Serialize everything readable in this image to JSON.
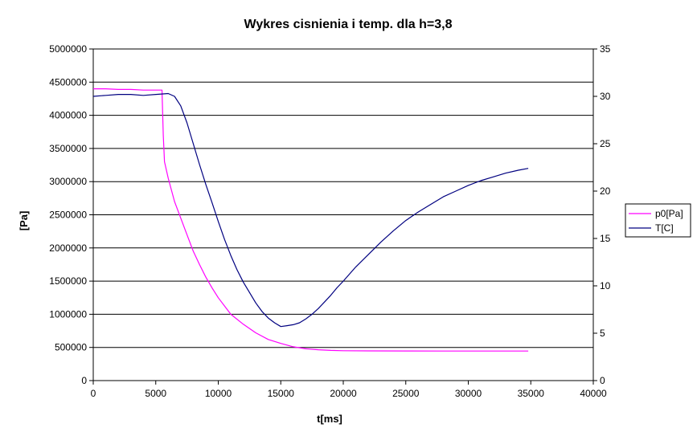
{
  "chart_data": {
    "type": "line",
    "title": "Wykres cisnienia i temp. dla h=3,8",
    "xlabel": "t[ms]",
    "ylabel": "[Pa]",
    "y2label": "",
    "xlim": [
      0,
      40000
    ],
    "ylim": [
      0,
      5000000
    ],
    "y2lim": [
      0,
      35
    ],
    "xticks": [
      0,
      5000,
      10000,
      15000,
      20000,
      25000,
      30000,
      35000,
      40000
    ],
    "yticks": [
      0,
      500000,
      1000000,
      1500000,
      2000000,
      2500000,
      3000000,
      3500000,
      4000000,
      4500000,
      5000000
    ],
    "y2ticks": [
      0,
      5,
      10,
      15,
      20,
      25,
      30,
      35
    ],
    "xtick_labels": [
      "0",
      "5000",
      "10000",
      "15000",
      "20000",
      "25000",
      "30000",
      "35000",
      "40000"
    ],
    "ytick_labels": [
      "0",
      "500000",
      "1000000",
      "1500000",
      "2000000",
      "2500000",
      "3000000",
      "3500000",
      "4000000",
      "4500000",
      "5000000"
    ],
    "y2tick_labels": [
      "0",
      "5",
      "10",
      "15",
      "20",
      "25",
      "30",
      "35"
    ],
    "grid": "horizontal",
    "legend_position": "right",
    "series": [
      {
        "name": "p0[Pa]",
        "axis": "left",
        "color": "#ff00ff",
        "x": [
          0,
          1000,
          2000,
          3000,
          4000,
          5000,
          5500,
          5600,
          5700,
          6000,
          6500,
          7000,
          7500,
          8000,
          8500,
          9000,
          9500,
          10000,
          11000,
          12000,
          13000,
          14000,
          15000,
          16000,
          17000,
          18000,
          19000,
          20000,
          22000,
          25000,
          28000,
          30000,
          32000,
          34800
        ],
        "y": [
          4400000,
          4400000,
          4390000,
          4390000,
          4380000,
          4380000,
          4380000,
          3700000,
          3300000,
          3050000,
          2700000,
          2450000,
          2200000,
          1950000,
          1750000,
          1560000,
          1400000,
          1250000,
          1000000,
          850000,
          720000,
          620000,
          560000,
          510000,
          480000,
          465000,
          455000,
          450000,
          448000,
          447000,
          446000,
          445000,
          445000,
          445000
        ]
      },
      {
        "name": "T[C]",
        "axis": "right",
        "color": "#000080",
        "x": [
          0,
          1000,
          2000,
          3000,
          4000,
          5000,
          6000,
          6500,
          7000,
          7500,
          8000,
          8500,
          9000,
          9500,
          10000,
          10500,
          11000,
          11500,
          12000,
          12500,
          13000,
          13500,
          14000,
          14500,
          15000,
          15500,
          16000,
          16500,
          17000,
          17500,
          18000,
          18500,
          19000,
          19500,
          20000,
          21000,
          22000,
          23000,
          24000,
          25000,
          26000,
          27000,
          28000,
          29000,
          30000,
          31000,
          32000,
          33000,
          34000,
          34800
        ],
        "y": [
          30.0,
          30.1,
          30.2,
          30.2,
          30.1,
          30.2,
          30.3,
          30.0,
          29.0,
          27.2,
          25.0,
          22.8,
          20.7,
          18.8,
          16.8,
          14.9,
          13.2,
          11.7,
          10.4,
          9.3,
          8.2,
          7.3,
          6.6,
          6.1,
          5.7,
          5.8,
          5.9,
          6.1,
          6.5,
          7.0,
          7.6,
          8.3,
          9.0,
          9.8,
          10.5,
          12.0,
          13.3,
          14.6,
          15.8,
          16.9,
          17.8,
          18.6,
          19.4,
          20.0,
          20.6,
          21.1,
          21.5,
          21.9,
          22.2,
          22.4
        ]
      }
    ]
  }
}
